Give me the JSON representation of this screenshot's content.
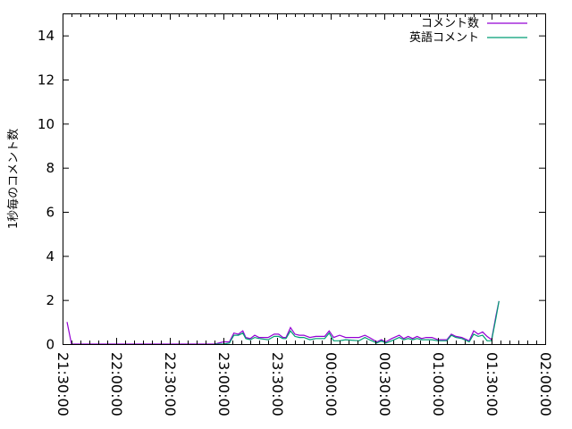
{
  "chart_data": {
    "type": "line",
    "title": "",
    "xlabel": "",
    "ylabel": "1秒毎のコメント数",
    "xlim": [
      "21:30:00",
      "02:00:00"
    ],
    "ylim": [
      0,
      15
    ],
    "x_ticks": [
      "21:30:00",
      "22:00:00",
      "22:30:00",
      "23:00:00",
      "23:30:00",
      "00:00:00",
      "00:30:00",
      "01:00:00",
      "01:30:00",
      "02:00:00"
    ],
    "y_ticks": [
      "0",
      "2",
      "4",
      "6",
      "8",
      "10",
      "12",
      "14"
    ],
    "grid": false,
    "legend_position": "top-right",
    "series": [
      {
        "name": "コメント数",
        "color": "#9400d3",
        "points": [
          [
            "21:32:30",
            1.0
          ],
          [
            "21:35:00",
            0.0
          ],
          [
            "22:55:00",
            0.0
          ],
          [
            "23:00:00",
            0.1
          ],
          [
            "23:03:20",
            0.1
          ],
          [
            "23:05:50",
            0.5
          ],
          [
            "23:08:20",
            0.45
          ],
          [
            "23:10:50",
            0.6
          ],
          [
            "23:12:30",
            0.3
          ],
          [
            "23:15:00",
            0.25
          ],
          [
            "23:17:30",
            0.4
          ],
          [
            "23:20:00",
            0.3
          ],
          [
            "23:25:00",
            0.3
          ],
          [
            "23:28:20",
            0.45
          ],
          [
            "23:30:50",
            0.45
          ],
          [
            "23:33:20",
            0.3
          ],
          [
            "23:35:00",
            0.3
          ],
          [
            "23:37:30",
            0.75
          ],
          [
            "23:40:00",
            0.45
          ],
          [
            "23:42:30",
            0.4
          ],
          [
            "23:45:00",
            0.4
          ],
          [
            "23:48:20",
            0.3
          ],
          [
            "23:51:40",
            0.35
          ],
          [
            "23:56:40",
            0.35
          ],
          [
            "23:59:10",
            0.6
          ],
          [
            "00:01:40",
            0.3
          ],
          [
            "00:05:00",
            0.4
          ],
          [
            "00:08:20",
            0.3
          ],
          [
            "00:15:50",
            0.3
          ],
          [
            "00:19:10",
            0.4
          ],
          [
            "00:21:40",
            0.3
          ],
          [
            "00:25:50",
            0.1
          ],
          [
            "00:28:20",
            0.2
          ],
          [
            "00:30:50",
            0.1
          ],
          [
            "00:34:10",
            0.25
          ],
          [
            "00:38:20",
            0.4
          ],
          [
            "00:40:50",
            0.25
          ],
          [
            "00:43:20",
            0.35
          ],
          [
            "00:45:50",
            0.25
          ],
          [
            "00:48:20",
            0.35
          ],
          [
            "00:50:50",
            0.25
          ],
          [
            "00:53:20",
            0.3
          ],
          [
            "00:56:40",
            0.3
          ],
          [
            "01:00:00",
            0.2
          ],
          [
            "01:05:00",
            0.2
          ],
          [
            "01:07:30",
            0.45
          ],
          [
            "01:10:00",
            0.35
          ],
          [
            "01:13:20",
            0.3
          ],
          [
            "01:17:30",
            0.15
          ],
          [
            "01:20:00",
            0.6
          ],
          [
            "01:22:30",
            0.45
          ],
          [
            "01:25:00",
            0.55
          ],
          [
            "01:27:30",
            0.35
          ],
          [
            "01:30:00",
            0.2
          ],
          [
            "01:32:30",
            1.3
          ],
          [
            "01:34:10",
            1.95
          ]
        ]
      },
      {
        "name": "英語コメント",
        "color": "#009e73",
        "points": [
          [
            "22:55:00",
            0.0
          ],
          [
            "23:00:00",
            0.0
          ],
          [
            "23:03:20",
            0.05
          ],
          [
            "23:05:50",
            0.4
          ],
          [
            "23:08:20",
            0.4
          ],
          [
            "23:10:50",
            0.5
          ],
          [
            "23:12:30",
            0.25
          ],
          [
            "23:15:00",
            0.2
          ],
          [
            "23:17:30",
            0.3
          ],
          [
            "23:20:00",
            0.25
          ],
          [
            "23:25:00",
            0.2
          ],
          [
            "23:28:20",
            0.35
          ],
          [
            "23:30:50",
            0.35
          ],
          [
            "23:33:20",
            0.25
          ],
          [
            "23:35:00",
            0.25
          ],
          [
            "23:37:30",
            0.6
          ],
          [
            "23:40:00",
            0.35
          ],
          [
            "23:42:30",
            0.3
          ],
          [
            "23:45:00",
            0.3
          ],
          [
            "23:48:20",
            0.2
          ],
          [
            "23:51:40",
            0.25
          ],
          [
            "23:56:40",
            0.25
          ],
          [
            "23:59:10",
            0.5
          ],
          [
            "00:01:40",
            0.15
          ],
          [
            "00:05:00",
            0.15
          ],
          [
            "00:08:20",
            0.2
          ],
          [
            "00:15:50",
            0.15
          ],
          [
            "00:19:10",
            0.3
          ],
          [
            "00:21:40",
            0.2
          ],
          [
            "00:25:50",
            0.05
          ],
          [
            "00:28:20",
            0.15
          ],
          [
            "00:30:50",
            0.05
          ],
          [
            "00:34:10",
            0.15
          ],
          [
            "00:38:20",
            0.3
          ],
          [
            "00:40:50",
            0.2
          ],
          [
            "00:43:20",
            0.25
          ],
          [
            "00:45:50",
            0.2
          ],
          [
            "00:48:20",
            0.25
          ],
          [
            "00:50:50",
            0.2
          ],
          [
            "00:53:20",
            0.2
          ],
          [
            "00:56:40",
            0.2
          ],
          [
            "01:00:00",
            0.15
          ],
          [
            "01:05:00",
            0.15
          ],
          [
            "01:07:30",
            0.4
          ],
          [
            "01:10:00",
            0.3
          ],
          [
            "01:13:20",
            0.25
          ],
          [
            "01:17:30",
            0.1
          ],
          [
            "01:20:00",
            0.45
          ],
          [
            "01:22:30",
            0.35
          ],
          [
            "01:25:00",
            0.4
          ],
          [
            "01:27:30",
            0.15
          ],
          [
            "01:30:00",
            0.15
          ],
          [
            "01:32:30",
            1.2
          ],
          [
            "01:34:10",
            1.95
          ]
        ]
      }
    ]
  }
}
